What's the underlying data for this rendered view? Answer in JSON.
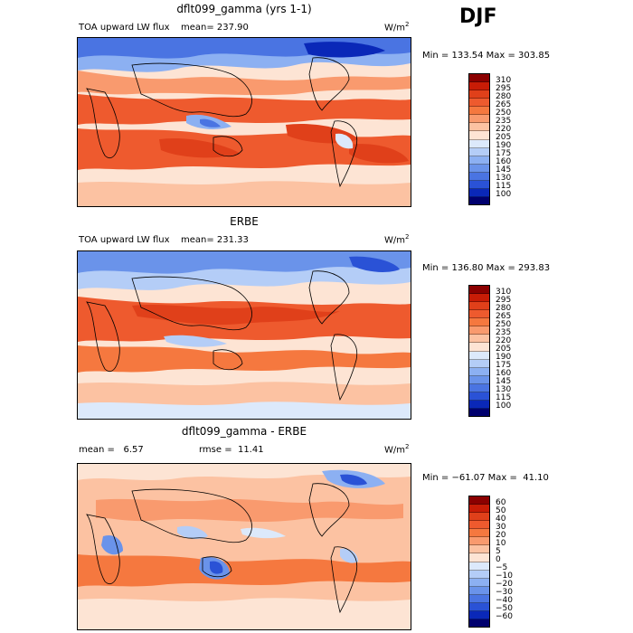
{
  "season": "DJF",
  "units_base": "W/m",
  "units_exp": "2",
  "panels": [
    {
      "title": "dflt099_gamma (yrs 1-1)",
      "variable": "TOA upward LW flux",
      "stat_text": "mean= 237.90",
      "minmax": "Min = 133.54 Max = 303.85",
      "levels": [
        "310",
        "295",
        "280",
        "265",
        "250",
        "235",
        "220",
        "205",
        "190",
        "175",
        "160",
        "145",
        "130",
        "115",
        "100"
      ],
      "colors": [
        "#8b0000",
        "#c81c06",
        "#e0401a",
        "#ee5a2e",
        "#f5783f",
        "#f99a6e",
        "#fcc2a2",
        "#fde4d4",
        "#dce9fb",
        "#b4cdf7",
        "#8cb0f2",
        "#6a93ea",
        "#4a74e2",
        "#2a52d6",
        "#0a28b8",
        "#00006e"
      ]
    },
    {
      "title": "ERBE",
      "variable": "TOA upward LW flux",
      "stat_text": "mean= 231.33",
      "minmax": "Min = 136.80 Max = 293.83",
      "levels": [
        "310",
        "295",
        "280",
        "265",
        "250",
        "235",
        "220",
        "205",
        "190",
        "175",
        "160",
        "145",
        "130",
        "115",
        "100"
      ],
      "colors": [
        "#8b0000",
        "#c81c06",
        "#e0401a",
        "#ee5a2e",
        "#f5783f",
        "#f99a6e",
        "#fcc2a2",
        "#fde4d4",
        "#dce9fb",
        "#b4cdf7",
        "#8cb0f2",
        "#6a93ea",
        "#4a74e2",
        "#2a52d6",
        "#0a28b8",
        "#00006e"
      ]
    },
    {
      "title": "dflt099_gamma - ERBE",
      "mean_text": "mean =   6.57",
      "rmse_text": "rmse =  11.41",
      "minmax": "Min = −61.07 Max =  41.10",
      "levels": [
        "60",
        "50",
        "40",
        "30",
        "20",
        "10",
        "5",
        "0",
        "−5",
        "−10",
        "−20",
        "−30",
        "−40",
        "−50",
        "−60"
      ],
      "colors": [
        "#8b0000",
        "#c81c06",
        "#e0401a",
        "#ee5a2e",
        "#f5783f",
        "#f99a6e",
        "#fcc2a2",
        "#fde4d4",
        "#dce9fb",
        "#b4cdf7",
        "#8cb0f2",
        "#6a93ea",
        "#4a74e2",
        "#2a52d6",
        "#0a28b8",
        "#00006e"
      ]
    }
  ]
}
